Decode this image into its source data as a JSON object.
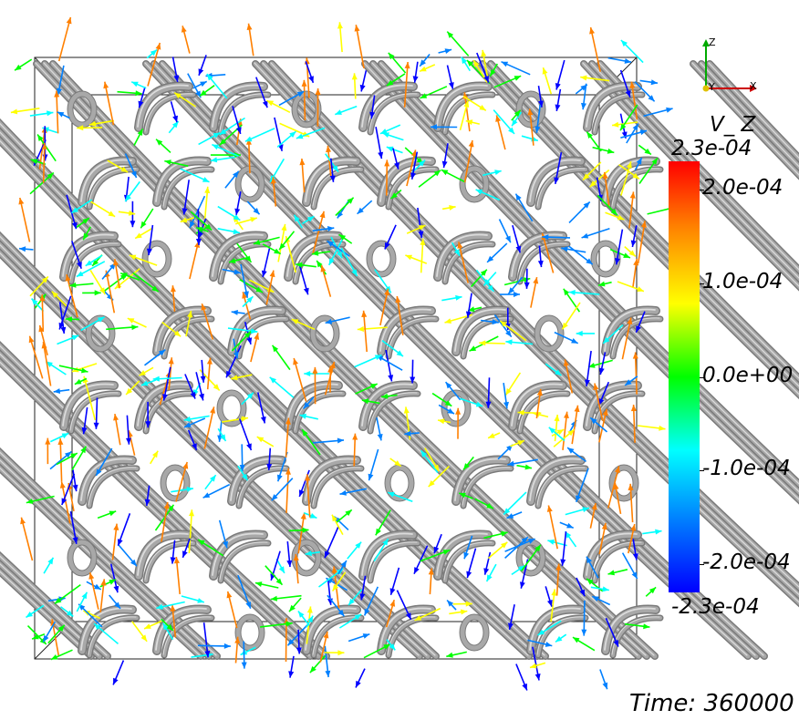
{
  "colorbar": {
    "title": "V_ Z",
    "max_label": "2.3e-04",
    "min_label": "-2.3e-04",
    "ticks": [
      {
        "label": "2.0e-04",
        "value": 0.0002
      },
      {
        "label": "1.0e-04",
        "value": 0.0001
      },
      {
        "label": "0.0e+00",
        "value": 0.0
      },
      {
        "label": "-1.0e-04",
        "value": -0.0001
      },
      {
        "label": "-2.0e-04",
        "value": -0.0002
      }
    ],
    "range": [
      -0.00023,
      0.00023
    ],
    "colors": [
      "#0000ff",
      "#0080ff",
      "#00ffff",
      "#00ff00",
      "#ffff00",
      "#ff8000",
      "#ff0000"
    ]
  },
  "orientation_axes": {
    "z": "Z",
    "y": "Y",
    "x": "X",
    "z_color": "#00aa00",
    "x_color": "#cc0000",
    "y_color": "#e0c000"
  },
  "time_label": "Time: 360000",
  "tube_color": "#a8a8a8"
}
